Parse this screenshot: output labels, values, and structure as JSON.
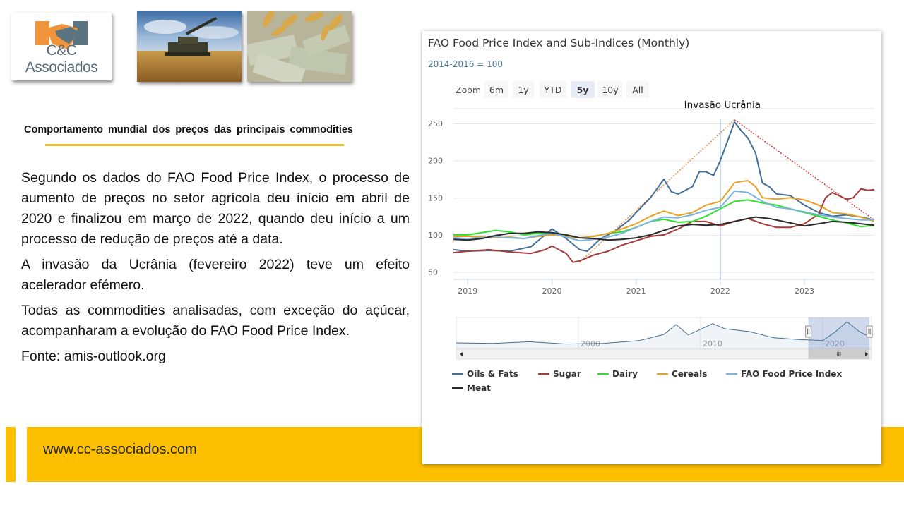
{
  "header": {
    "logo_text": "C&C Associados",
    "photos": [
      "tank-in-wheat-field-photo",
      "wheat-on-dollar-bills-photo"
    ]
  },
  "slide": {
    "subtitle": "Comportamento mundial dos preços das principais commodities",
    "paragraphs": [
      "Segundo os dados do FAO Food Price Index, o processo de aumento de preços no setor agrícola deu início em abril de 2020 e finalizou em março de 2022, quando deu início a um processo de redução de preços até a data.",
      "A invasão da Ucrânia (fevereiro 2022) teve um efeito acelerador efémero.",
      "Todas as commodities analisadas, com exceção do açúcar, acompanharam a evolução do FAO Food Price Index."
    ],
    "source": "Fonte: amis-outlook.org",
    "footer_url": "www.cc-associados.com"
  },
  "colors": {
    "accent_yellow": "#fcc000",
    "underline_yellow": "#f2c12e"
  },
  "chart_data": {
    "type": "line",
    "title": "FAO Food Price Index and Sub-Indices (Monthly)",
    "subtitle": "2014-2016 = 100",
    "zoom_label": "Zoom",
    "zoom_buttons": [
      "6m",
      "1y",
      "YTD",
      "5y",
      "10y",
      "All"
    ],
    "zoom_selected": "5y",
    "annotation": {
      "label": "Invasão Ucrânia",
      "x": 2022.0
    },
    "ylim": [
      40,
      270
    ],
    "xlim": [
      2018.83,
      2023.83
    ],
    "yticks": [
      50,
      100,
      150,
      200,
      250
    ],
    "xticks": [
      2019,
      2020,
      2021,
      2022,
      2023
    ],
    "navigator_ticks": [
      {
        "label": "2000",
        "x": 2000
      },
      {
        "label": "2010",
        "x": 2010
      },
      {
        "label": "2020",
        "x": 2020
      }
    ],
    "navigator_range": [
      1990,
      2024
    ],
    "navigator_window": [
      2018.83,
      2023.83
    ],
    "trend_lines": [
      {
        "color": "#e8893a",
        "points": [
          [
            2020.33,
            63
          ],
          [
            2022.17,
            255
          ]
        ]
      },
      {
        "color": "#e03030",
        "points": [
          [
            2022.17,
            255
          ],
          [
            2023.83,
            120
          ]
        ]
      }
    ],
    "series": [
      {
        "name": "Oils & Fats",
        "color": "#436f9b",
        "points": [
          [
            2018.83,
            80
          ],
          [
            2019.0,
            78
          ],
          [
            2019.25,
            79
          ],
          [
            2019.5,
            78
          ],
          [
            2019.75,
            84
          ],
          [
            2019.92,
            100
          ],
          [
            2020.0,
            108
          ],
          [
            2020.17,
            95
          ],
          [
            2020.33,
            80
          ],
          [
            2020.42,
            78
          ],
          [
            2020.58,
            95
          ],
          [
            2020.75,
            105
          ],
          [
            2020.92,
            120
          ],
          [
            2021.0,
            130
          ],
          [
            2021.17,
            150
          ],
          [
            2021.33,
            175
          ],
          [
            2021.42,
            158
          ],
          [
            2021.5,
            155
          ],
          [
            2021.67,
            165
          ],
          [
            2021.75,
            185
          ],
          [
            2021.83,
            185
          ],
          [
            2021.92,
            180
          ],
          [
            2022.0,
            200
          ],
          [
            2022.17,
            252
          ],
          [
            2022.25,
            240
          ],
          [
            2022.33,
            230
          ],
          [
            2022.42,
            210
          ],
          [
            2022.5,
            170
          ],
          [
            2022.58,
            165
          ],
          [
            2022.67,
            155
          ],
          [
            2022.83,
            153
          ],
          [
            2023.0,
            140
          ],
          [
            2023.17,
            130
          ],
          [
            2023.33,
            125
          ],
          [
            2023.5,
            127
          ],
          [
            2023.67,
            124
          ],
          [
            2023.83,
            120
          ]
        ]
      },
      {
        "name": "Sugar",
        "color": "#a83a3a",
        "points": [
          [
            2018.83,
            76
          ],
          [
            2019.0,
            78
          ],
          [
            2019.25,
            80
          ],
          [
            2019.5,
            77
          ],
          [
            2019.75,
            75
          ],
          [
            2019.92,
            80
          ],
          [
            2020.0,
            85
          ],
          [
            2020.17,
            75
          ],
          [
            2020.25,
            63
          ],
          [
            2020.33,
            65
          ],
          [
            2020.5,
            73
          ],
          [
            2020.67,
            78
          ],
          [
            2020.83,
            86
          ],
          [
            2021.0,
            92
          ],
          [
            2021.17,
            98
          ],
          [
            2021.33,
            100
          ],
          [
            2021.5,
            108
          ],
          [
            2021.67,
            118
          ],
          [
            2021.83,
            118
          ],
          [
            2022.0,
            112
          ],
          [
            2022.17,
            118
          ],
          [
            2022.33,
            122
          ],
          [
            2022.5,
            115
          ],
          [
            2022.67,
            110
          ],
          [
            2022.83,
            110
          ],
          [
            2023.0,
            115
          ],
          [
            2023.17,
            128
          ],
          [
            2023.25,
            150
          ],
          [
            2023.33,
            157
          ],
          [
            2023.5,
            148
          ],
          [
            2023.58,
            150
          ],
          [
            2023.67,
            162
          ],
          [
            2023.75,
            160
          ],
          [
            2023.83,
            161
          ]
        ]
      },
      {
        "name": "Dairy",
        "color": "#2ee02e",
        "points": [
          [
            2018.83,
            100
          ],
          [
            2019.0,
            100
          ],
          [
            2019.17,
            103
          ],
          [
            2019.33,
            106
          ],
          [
            2019.5,
            104
          ],
          [
            2019.67,
            100
          ],
          [
            2019.83,
            102
          ],
          [
            2020.0,
            103
          ],
          [
            2020.17,
            100
          ],
          [
            2020.33,
            96
          ],
          [
            2020.5,
            98
          ],
          [
            2020.67,
            102
          ],
          [
            2020.83,
            104
          ],
          [
            2021.0,
            110
          ],
          [
            2021.17,
            118
          ],
          [
            2021.33,
            121
          ],
          [
            2021.5,
            117
          ],
          [
            2021.67,
            118
          ],
          [
            2021.83,
            125
          ],
          [
            2022.0,
            135
          ],
          [
            2022.17,
            145
          ],
          [
            2022.33,
            147
          ],
          [
            2022.5,
            143
          ],
          [
            2022.67,
            140
          ],
          [
            2022.83,
            135
          ],
          [
            2023.0,
            130
          ],
          [
            2023.17,
            125
          ],
          [
            2023.33,
            120
          ],
          [
            2023.5,
            116
          ],
          [
            2023.67,
            111
          ],
          [
            2023.83,
            113
          ]
        ]
      },
      {
        "name": "Cereals",
        "color": "#e8a020",
        "points": [
          [
            2018.83,
            98
          ],
          [
            2019.0,
            98
          ],
          [
            2019.17,
            97
          ],
          [
            2019.33,
            96
          ],
          [
            2019.5,
            97
          ],
          [
            2019.67,
            95
          ],
          [
            2019.83,
            98
          ],
          [
            2020.0,
            100
          ],
          [
            2020.17,
            98
          ],
          [
            2020.33,
            96
          ],
          [
            2020.5,
            98
          ],
          [
            2020.67,
            102
          ],
          [
            2020.83,
            108
          ],
          [
            2021.0,
            115
          ],
          [
            2021.17,
            125
          ],
          [
            2021.33,
            132
          ],
          [
            2021.5,
            126
          ],
          [
            2021.67,
            130
          ],
          [
            2021.83,
            140
          ],
          [
            2022.0,
            145
          ],
          [
            2022.17,
            170
          ],
          [
            2022.25,
            172
          ],
          [
            2022.33,
            173
          ],
          [
            2022.42,
            165
          ],
          [
            2022.5,
            150
          ],
          [
            2022.67,
            148
          ],
          [
            2022.83,
            150
          ],
          [
            2023.0,
            147
          ],
          [
            2023.17,
            140
          ],
          [
            2023.33,
            130
          ],
          [
            2023.5,
            128
          ],
          [
            2023.67,
            124
          ],
          [
            2023.83,
            118
          ]
        ]
      },
      {
        "name": "FAO Food Price Index",
        "color": "#7ab4e0",
        "points": [
          [
            2018.83,
            96
          ],
          [
            2019.0,
            95
          ],
          [
            2019.17,
            96
          ],
          [
            2019.33,
            97
          ],
          [
            2019.5,
            96
          ],
          [
            2019.67,
            95
          ],
          [
            2019.83,
            99
          ],
          [
            2020.0,
            102
          ],
          [
            2020.17,
            97
          ],
          [
            2020.33,
            92
          ],
          [
            2020.5,
            94
          ],
          [
            2020.67,
            97
          ],
          [
            2020.83,
            102
          ],
          [
            2021.0,
            110
          ],
          [
            2021.17,
            118
          ],
          [
            2021.33,
            124
          ],
          [
            2021.5,
            123
          ],
          [
            2021.67,
            127
          ],
          [
            2021.83,
            133
          ],
          [
            2022.0,
            137
          ],
          [
            2022.17,
            159
          ],
          [
            2022.25,
            158
          ],
          [
            2022.33,
            157
          ],
          [
            2022.5,
            145
          ],
          [
            2022.67,
            137
          ],
          [
            2022.83,
            135
          ],
          [
            2023.0,
            131
          ],
          [
            2023.17,
            127
          ],
          [
            2023.33,
            124
          ],
          [
            2023.5,
            122
          ],
          [
            2023.67,
            120
          ],
          [
            2023.83,
            120
          ]
        ]
      },
      {
        "name": "Meat",
        "color": "#2a2a2a",
        "points": [
          [
            2018.83,
            94
          ],
          [
            2019.0,
            93
          ],
          [
            2019.17,
            95
          ],
          [
            2019.33,
            99
          ],
          [
            2019.5,
            102
          ],
          [
            2019.67,
            102
          ],
          [
            2019.83,
            104
          ],
          [
            2020.0,
            103
          ],
          [
            2020.17,
            100
          ],
          [
            2020.33,
            96
          ],
          [
            2020.5,
            95
          ],
          [
            2020.67,
            93
          ],
          [
            2020.83,
            94
          ],
          [
            2021.0,
            96
          ],
          [
            2021.17,
            100
          ],
          [
            2021.33,
            106
          ],
          [
            2021.5,
            112
          ],
          [
            2021.67,
            114
          ],
          [
            2021.83,
            113
          ],
          [
            2022.0,
            114
          ],
          [
            2022.17,
            118
          ],
          [
            2022.33,
            122
          ],
          [
            2022.42,
            124
          ],
          [
            2022.58,
            122
          ],
          [
            2022.75,
            118
          ],
          [
            2022.92,
            114
          ],
          [
            2023.0,
            112
          ],
          [
            2023.17,
            115
          ],
          [
            2023.33,
            118
          ],
          [
            2023.5,
            117
          ],
          [
            2023.67,
            115
          ],
          [
            2023.83,
            113
          ]
        ]
      }
    ],
    "navigator_series": [
      [
        1990,
        100
      ],
      [
        1993,
        98
      ],
      [
        1996,
        104
      ],
      [
        1999,
        96
      ],
      [
        2002,
        98
      ],
      [
        2005,
        108
      ],
      [
        2007,
        130
      ],
      [
        2008,
        165
      ],
      [
        2009,
        128
      ],
      [
        2010,
        148
      ],
      [
        2011,
        168
      ],
      [
        2012,
        150
      ],
      [
        2014,
        140
      ],
      [
        2016,
        118
      ],
      [
        2018,
        112
      ],
      [
        2020,
        108
      ],
      [
        2021,
        138
      ],
      [
        2022,
        175
      ],
      [
        2023,
        140
      ],
      [
        2024,
        118
      ]
    ],
    "legend": [
      "Oils & Fats",
      "Sugar",
      "Dairy",
      "Cereals",
      "FAO Food Price Index",
      "Meat"
    ]
  }
}
